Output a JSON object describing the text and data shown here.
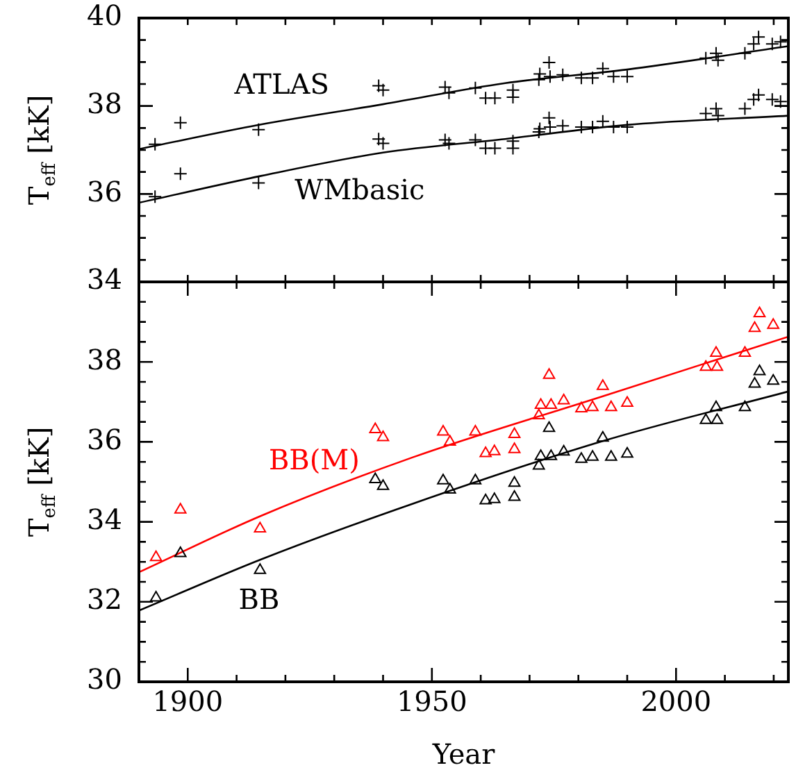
{
  "chart_data": [
    {
      "type": "scatter",
      "ylabel": "T$_{eff}$ [kK]",
      "marker": "cross",
      "grid": false,
      "tick_labels": "y",
      "xlim": [
        1890,
        2023
      ],
      "xticks": [
        {
          "value": 1900,
          "label": null
        },
        {
          "value": 1910,
          "label": null
        },
        {
          "value": 1920,
          "label": null
        },
        {
          "value": 1930,
          "label": null
        },
        {
          "value": 1940,
          "label": null
        },
        {
          "value": 1950,
          "label": null
        },
        {
          "value": 1960,
          "label": null
        },
        {
          "value": 1970,
          "label": null
        },
        {
          "value": 1980,
          "label": null
        },
        {
          "value": 1990,
          "label": null
        },
        {
          "value": 2000,
          "label": null
        },
        {
          "value": 2010,
          "label": null
        },
        {
          "value": 2020,
          "label": null
        }
      ],
      "ylim": [
        34,
        40
      ],
      "yticks": [
        34,
        {
          "value": 34.5,
          "label": null
        },
        {
          "value": 35,
          "label": null
        },
        {
          "value": 35.5,
          "label": null
        },
        36,
        {
          "value": 36.5,
          "label": null
        },
        {
          "value": 37,
          "label": null
        },
        {
          "value": 37.5,
          "label": null
        },
        38,
        {
          "value": 38.5,
          "label": null
        },
        {
          "value": 39,
          "label": null
        },
        {
          "value": 39.5,
          "label": null
        },
        40
      ],
      "series": [
        {
          "name": "ATLAS",
          "type": "scatter",
          "color": "#000000",
          "x": [
            1893.3,
            1898.5,
            1914.5,
            1939.1,
            1940,
            1952.7,
            1953.5,
            1958.9,
            1961,
            1962.9,
            1966.6,
            1966.6,
            1971.9,
            1972.1,
            1974,
            1974.2,
            1976.8,
            1980.6,
            1982.9,
            1985,
            1987.2,
            1990,
            2006.1,
            2008.2,
            2008.6,
            2014.1,
            2015.9,
            2016.9,
            2019.7,
            2021.4
          ],
          "values": [
            37.13,
            37.62,
            37.46,
            38.46,
            38.36,
            38.43,
            38.3,
            38.41,
            38.18,
            38.18,
            38.36,
            38.2,
            38.6,
            38.73,
            38.99,
            38.67,
            38.71,
            38.64,
            38.64,
            38.85,
            38.67,
            38.67,
            39.09,
            39.2,
            39.04,
            39.2,
            39.41,
            39.57,
            39.41,
            39.46
          ]
        },
        {
          "name": "WMbasic",
          "type": "scatter",
          "color": "#000000",
          "x": [
            1893.3,
            1898.5,
            1914.5,
            1939.1,
            1940,
            1952.7,
            1953.5,
            1958.9,
            1961,
            1962.9,
            1966.6,
            1966.6,
            1971.9,
            1972.1,
            1974,
            1974.2,
            1976.8,
            1980.6,
            1982.9,
            1985,
            1987.2,
            1990,
            2006.1,
            2008.2,
            2008.6,
            2014.1,
            2015.9,
            2016.9,
            2019.7,
            2021.4
          ],
          "values": [
            35.94,
            36.46,
            36.25,
            37.25,
            37.15,
            37.23,
            37.15,
            37.23,
            37.04,
            37.04,
            37.2,
            37.04,
            37.41,
            37.48,
            37.73,
            37.52,
            37.55,
            37.52,
            37.52,
            37.65,
            37.52,
            37.52,
            37.83,
            37.94,
            37.78,
            37.94,
            38.15,
            38.25,
            38.15,
            38.1
          ]
        },
        {
          "type": "line",
          "marker": "none",
          "color": "#000000",
          "x": [
            1890,
            1915,
            1940,
            1965,
            1990,
            2023
          ],
          "values": [
            37.02,
            37.58,
            38.04,
            38.52,
            38.83,
            39.36
          ]
        },
        {
          "type": "line",
          "marker": "none",
          "color": "#000000",
          "x": [
            1890,
            1915,
            1940,
            1965,
            1990,
            2023
          ],
          "values": [
            35.8,
            36.41,
            36.94,
            37.25,
            37.57,
            37.78
          ]
        }
      ]
    },
    {
      "type": "scatter",
      "ylabel": "T$_{eff}$ [kK]",
      "xlabel": "Year",
      "marker": "triangle",
      "grid": false,
      "xlim": [
        1890,
        2023
      ],
      "xticks": [
        1900,
        {
          "value": 1910,
          "label": null
        },
        {
          "value": 1920,
          "label": null
        },
        {
          "value": 1930,
          "label": null
        },
        {
          "value": 1940,
          "label": null
        },
        1950,
        {
          "value": 1960,
          "label": null
        },
        {
          "value": 1970,
          "label": null
        },
        {
          "value": 1980,
          "label": null
        },
        {
          "value": 1990,
          "label": null
        },
        2000,
        {
          "value": 2010,
          "label": null
        },
        {
          "value": 2020,
          "label": null
        }
      ],
      "ylim": [
        30,
        40
      ],
      "yticks": [
        30,
        {
          "value": 30.5,
          "label": null
        },
        {
          "value": 31,
          "label": null
        },
        {
          "value": 31.5,
          "label": null
        },
        32,
        {
          "value": 32.5,
          "label": null
        },
        {
          "value": 33,
          "label": null
        },
        {
          "value": 33.5,
          "label": null
        },
        34,
        {
          "value": 34.5,
          "label": null
        },
        {
          "value": 35,
          "label": null
        },
        {
          "value": 35.5,
          "label": null
        },
        36,
        {
          "value": 36.5,
          "label": null
        },
        {
          "value": 37,
          "label": null
        },
        {
          "value": 37.5,
          "label": null
        },
        38,
        {
          "value": 38.5,
          "label": null
        },
        {
          "value": 39,
          "label": null
        },
        {
          "value": 39.5,
          "label": null
        },
        {
          "value": 40,
          "label": null
        }
      ],
      "series": [
        {
          "name": "BB(M)",
          "type": "scatter",
          "color": "#ff0000",
          "x": [
            1893.5,
            1898.5,
            1914.8,
            1938.4,
            1940,
            1952.3,
            1953.7,
            1958.9,
            1961,
            1962.8,
            1966.9,
            1966.9,
            1971.9,
            1972.3,
            1974,
            1974.4,
            1977,
            1980.6,
            1982.9,
            1985,
            1986.7,
            1990,
            2006.1,
            2008.2,
            2008.4,
            2014.1,
            2016.1,
            2017.1,
            2019.9
          ],
          "values": [
            33.11,
            34.3,
            33.83,
            36.31,
            36.11,
            36.25,
            36.0,
            36.25,
            35.71,
            35.76,
            36.19,
            35.81,
            36.66,
            36.92,
            37.67,
            36.92,
            37.03,
            36.83,
            36.86,
            37.39,
            36.86,
            36.97,
            37.87,
            38.22,
            37.87,
            38.22,
            38.84,
            39.21,
            38.92
          ]
        },
        {
          "name": "BB",
          "type": "scatter",
          "color": "#000000",
          "x": [
            1893.5,
            1898.5,
            1914.8,
            1938.4,
            1940,
            1952.3,
            1953.7,
            1958.9,
            1961,
            1962.8,
            1966.9,
            1966.9,
            1971.9,
            1972.3,
            1974,
            1974.4,
            1977,
            1980.6,
            1982.9,
            1985,
            1986.7,
            1990,
            2006.1,
            2008.2,
            2008.4,
            2014.1,
            2016.1,
            2017.1,
            2019.9
          ],
          "values": [
            32.1,
            33.21,
            32.79,
            35.06,
            34.89,
            35.03,
            34.8,
            35.03,
            34.53,
            34.56,
            34.97,
            34.62,
            35.4,
            35.64,
            36.34,
            35.64,
            35.75,
            35.57,
            35.62,
            36.1,
            35.62,
            35.7,
            36.54,
            36.86,
            36.54,
            36.86,
            37.45,
            37.76,
            37.52
          ]
        },
        {
          "type": "line",
          "marker": "none",
          "color": "#ff0000",
          "x": [
            1890,
            1915,
            1946,
            1985,
            2023
          ],
          "values": [
            32.74,
            34.15,
            35.61,
            37.14,
            38.63
          ]
        },
        {
          "type": "line",
          "marker": "none",
          "color": "#000000",
          "x": [
            1890,
            1915,
            1946,
            1985,
            2023
          ],
          "values": [
            31.78,
            33.06,
            34.45,
            36.02,
            37.26
          ]
        }
      ]
    }
  ]
}
